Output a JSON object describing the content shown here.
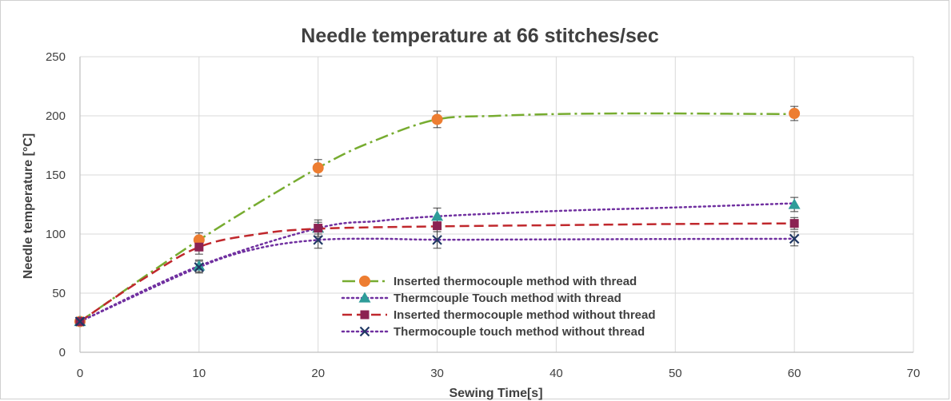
{
  "chart_data": {
    "type": "scatter",
    "title": "Needle temperature at 66 stitches/sec",
    "xlabel": "Sewing Time[s]",
    "ylabel": "Needle temperature [°C]",
    "xlim": [
      0,
      70
    ],
    "ylim": [
      0,
      250
    ],
    "xticks": [
      0,
      10,
      20,
      30,
      40,
      50,
      60,
      70
    ],
    "yticks": [
      0,
      50,
      100,
      150,
      200,
      250
    ],
    "grid": true,
    "legend_position": "lower-center",
    "series": [
      {
        "name": "Inserted thermocouple method with thread",
        "color": "#ED7D31",
        "line_color": "#77AC30",
        "line_style": "dash-dot",
        "marker": "circle",
        "x": [
          0,
          10,
          20,
          30,
          60
        ],
        "y": [
          26,
          95,
          156,
          197,
          202
        ],
        "error": [
          2,
          6,
          7,
          7,
          6
        ],
        "curve_x": [
          0,
          10,
          20,
          25,
          30,
          35,
          40,
          45,
          50,
          55,
          60
        ],
        "curve_y": [
          26,
          95,
          156,
          180,
          197,
          200,
          201.5,
          202,
          202,
          201.7,
          201.5
        ]
      },
      {
        "name": "Thermcouple Touch method with thread",
        "color": "#2E9C99",
        "line_color": "#7030A0",
        "line_style": "dotted",
        "marker": "triangle",
        "x": [
          0,
          10,
          20,
          30,
          60
        ],
        "y": [
          26,
          73,
          105,
          115,
          125
        ],
        "error": [
          2,
          5,
          7,
          7,
          6
        ],
        "curve_x": [
          0,
          10,
          20,
          25,
          30,
          40,
          50,
          60
        ],
        "curve_y": [
          26,
          73,
          105,
          111,
          115,
          119.5,
          122.5,
          126
        ]
      },
      {
        "name": "Inserted thermocouple method without thread",
        "color": "#8B2252",
        "line_color": "#C0282D",
        "line_style": "dashed",
        "marker": "square",
        "x": [
          0,
          10,
          20,
          30,
          60
        ],
        "y": [
          26,
          89,
          105,
          107,
          109
        ],
        "error": [
          2,
          6,
          5,
          5,
          5
        ],
        "curve_x": [
          0,
          5,
          10,
          15,
          20,
          30,
          40,
          50,
          60
        ],
        "curve_y": [
          26,
          60,
          89,
          100,
          104.5,
          106.5,
          107.5,
          108.5,
          109
        ]
      },
      {
        "name": "Thermocouple touch method without thread",
        "color": "#203864",
        "line_color": "#7030A0",
        "line_style": "dotted",
        "marker": "x",
        "x": [
          0,
          10,
          20,
          30,
          60
        ],
        "y": [
          26,
          72,
          95,
          95,
          96
        ],
        "error": [
          2,
          5,
          7,
          7,
          6
        ],
        "curve_x": [
          0,
          10,
          15,
          20,
          25,
          30,
          40,
          50,
          60
        ],
        "curve_y": [
          26,
          72,
          88,
          95,
          96,
          95.2,
          95.5,
          95.8,
          96
        ]
      }
    ]
  }
}
